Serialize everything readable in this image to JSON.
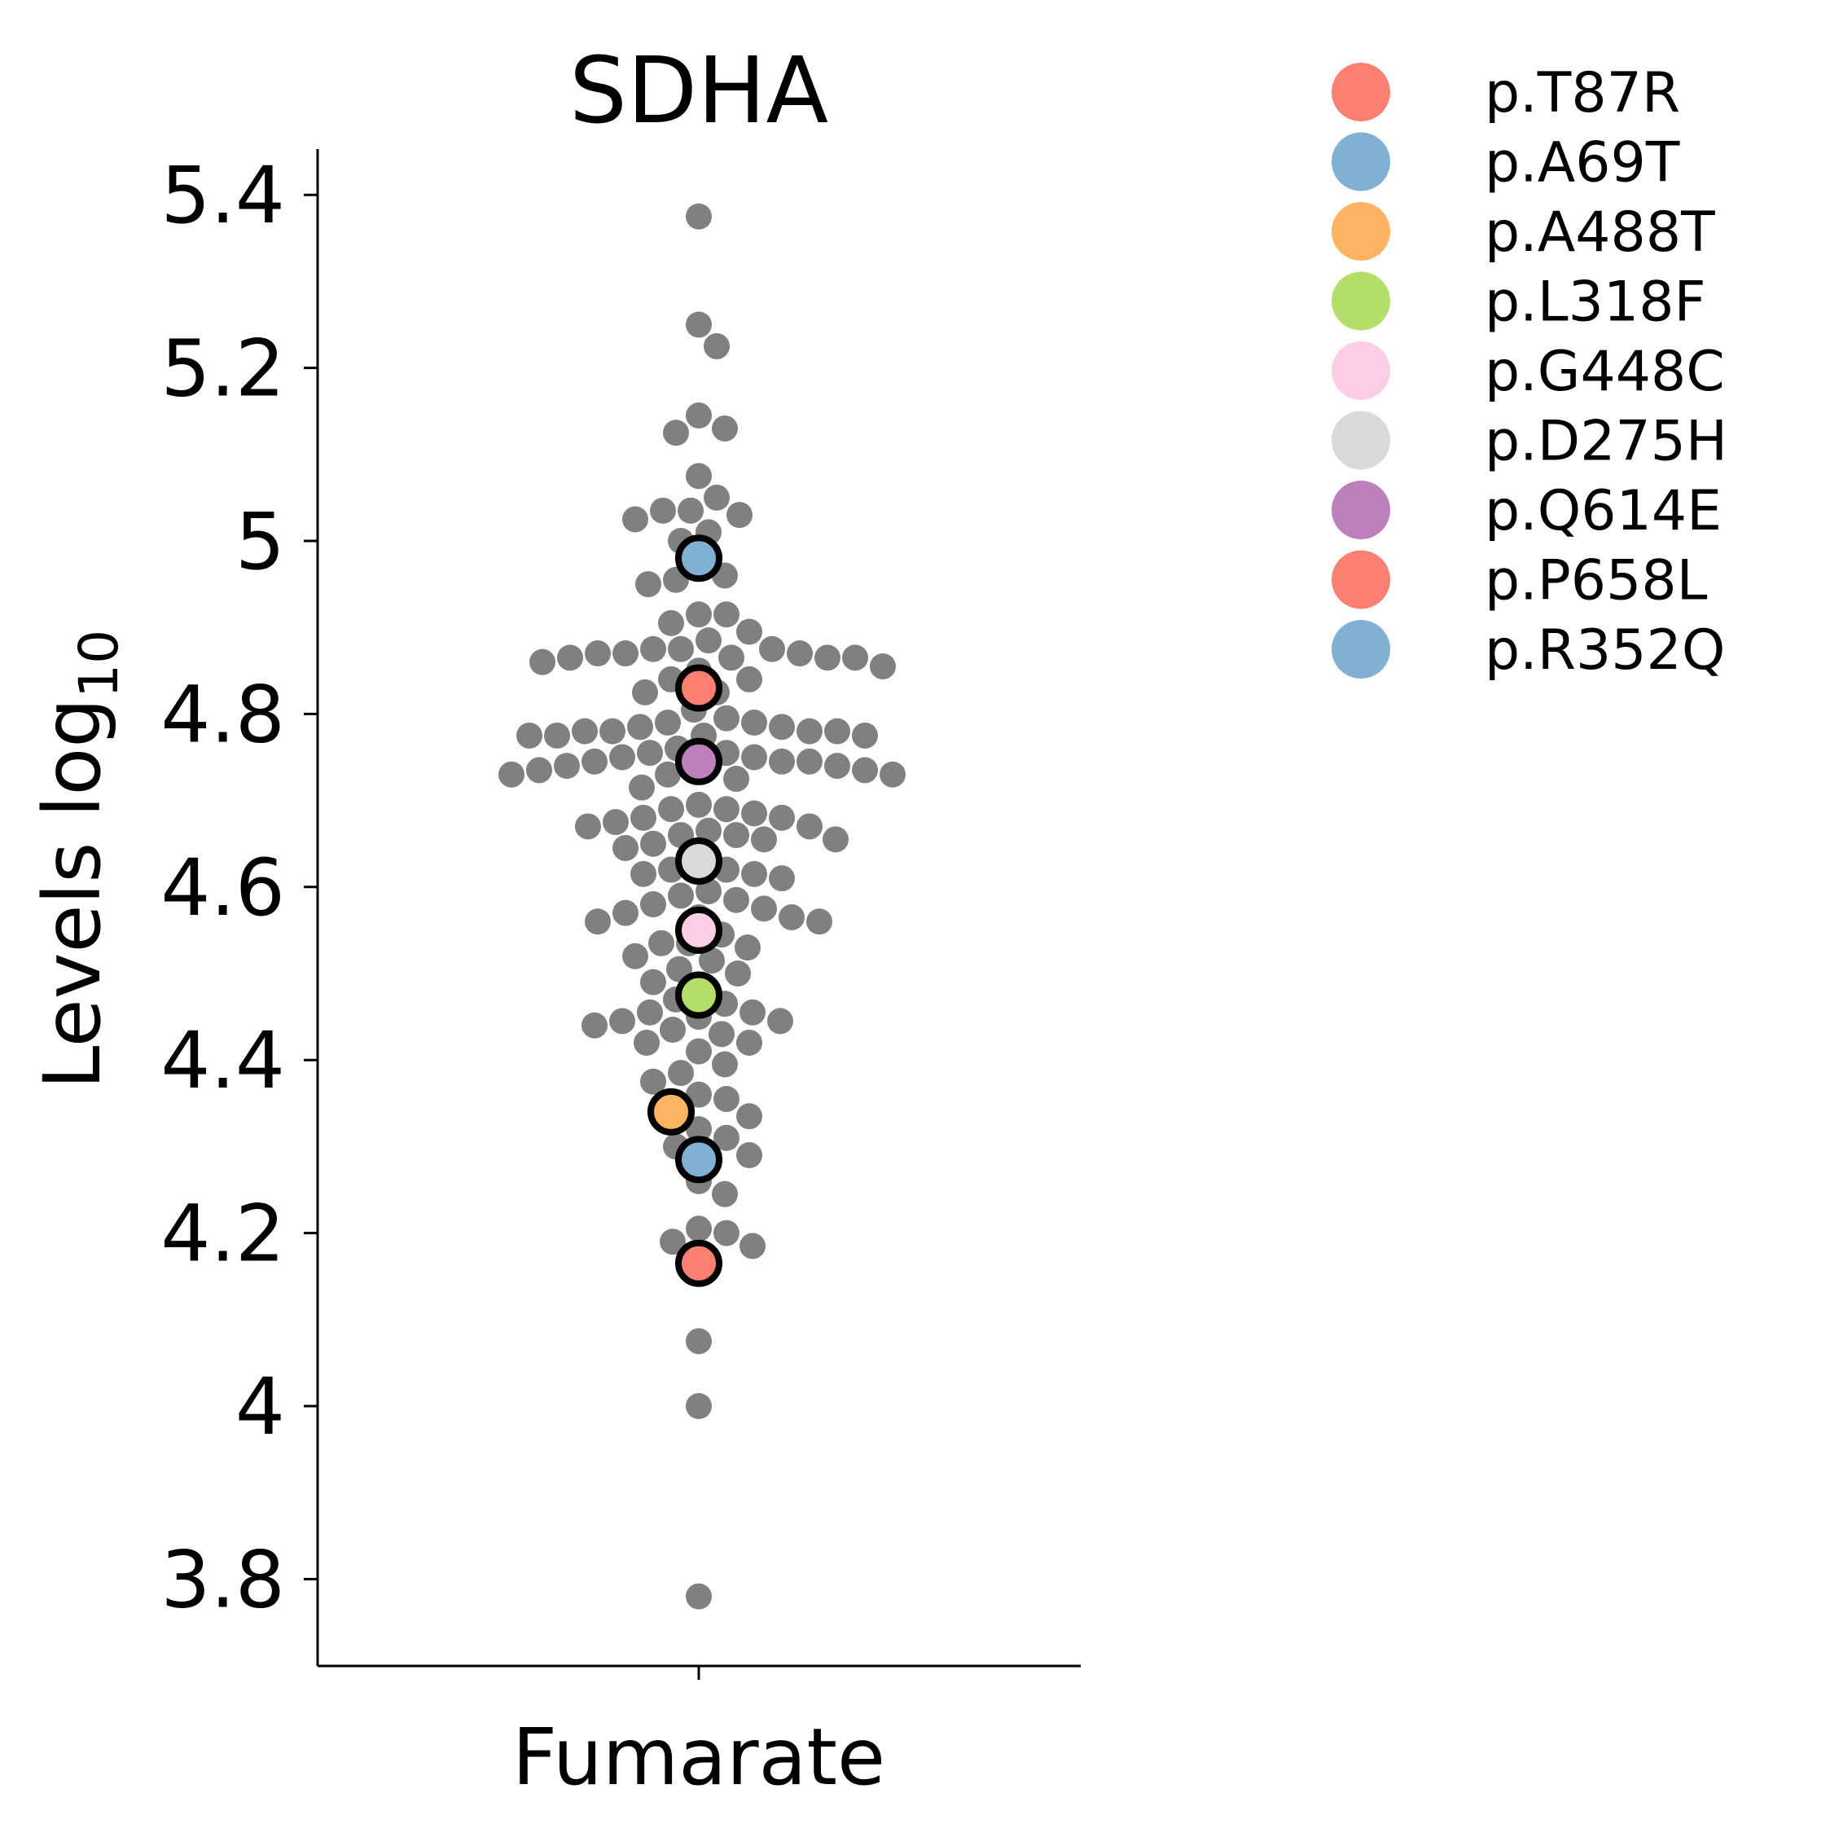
{
  "chart_data": {
    "type": "scatter",
    "title": "SDHA",
    "xlabel": "Fumarate",
    "ylabel": "Levels log",
    "ylabel_subscript": "10",
    "ylim": [
      3.7,
      5.45
    ],
    "yticks": [
      3.8,
      4,
      4.2,
      4.4,
      4.6,
      4.8,
      5,
      5.2,
      5.4
    ],
    "ytick_labels": [
      "3.8",
      "4",
      "4.2",
      "4.4",
      "4.6",
      "4.8",
      "5",
      "5.2",
      "5.4"
    ],
    "categories": [
      "Fumarate"
    ],
    "background_color": "#808080",
    "background_values": [
      5.375,
      5.25,
      5.225,
      5.145,
      5.13,
      5.125,
      5.075,
      5.05,
      5.035,
      5.035,
      5.03,
      5.025,
      5.01,
      5.0,
      4.975,
      4.96,
      4.955,
      4.95,
      4.915,
      4.915,
      4.905,
      4.895,
      4.885,
      4.875,
      4.875,
      4.875,
      4.87,
      4.87,
      4.87,
      4.865,
      4.865,
      4.865,
      4.865,
      4.86,
      4.855,
      4.85,
      4.84,
      4.84,
      4.825,
      4.825,
      4.805,
      4.795,
      4.79,
      4.79,
      4.785,
      4.785,
      4.78,
      4.78,
      4.78,
      4.78,
      4.775,
      4.775,
      4.775,
      4.775,
      4.76,
      4.755,
      4.755,
      4.75,
      4.75,
      4.745,
      4.745,
      4.745,
      4.74,
      4.74,
      4.74,
      4.735,
      4.735,
      4.73,
      4.73,
      4.73,
      4.725,
      4.715,
      4.695,
      4.69,
      4.69,
      4.685,
      4.68,
      4.68,
      4.675,
      4.67,
      4.67,
      4.665,
      4.66,
      4.66,
      4.655,
      4.655,
      4.65,
      4.645,
      4.625,
      4.62,
      4.62,
      4.615,
      4.615,
      4.61,
      4.595,
      4.59,
      4.585,
      4.58,
      4.575,
      4.57,
      4.565,
      4.565,
      4.56,
      4.56,
      4.545,
      4.535,
      4.535,
      4.53,
      4.52,
      4.515,
      4.505,
      4.5,
      4.49,
      4.485,
      4.47,
      4.465,
      4.455,
      4.455,
      4.45,
      4.445,
      4.445,
      4.44,
      4.435,
      4.43,
      4.42,
      4.42,
      4.41,
      4.395,
      4.385,
      4.375,
      4.36,
      4.355,
      4.345,
      4.335,
      4.32,
      4.31,
      4.3,
      4.29,
      4.26,
      4.245,
      4.205,
      4.2,
      4.19,
      4.185,
      4.075,
      4.0,
      3.78
    ],
    "highlighted": [
      {
        "name": "p.A69T",
        "value": 4.98,
        "color": "#80b1d3"
      },
      {
        "name": "p.T87R",
        "value": 4.83,
        "color": "#fb8072"
      },
      {
        "name": "p.Q614E",
        "value": 4.745,
        "color": "#bc80bd"
      },
      {
        "name": "p.D275H",
        "value": 4.63,
        "color": "#d9d9d9"
      },
      {
        "name": "p.G448C",
        "value": 4.55,
        "color": "#fccde5"
      },
      {
        "name": "p.L318F",
        "value": 4.475,
        "color": "#b3de69"
      },
      {
        "name": "p.A488T",
        "value": 4.34,
        "color": "#fdb462"
      },
      {
        "name": "p.R352Q",
        "value": 4.285,
        "color": "#80b1d3"
      },
      {
        "name": "p.P658L",
        "value": 4.165,
        "color": "#fb8072"
      }
    ],
    "legend": {
      "placement": "top-right-outside",
      "entries": [
        {
          "label": "p.T87R",
          "color": "#fb8072"
        },
        {
          "label": "p.A69T",
          "color": "#80b1d3"
        },
        {
          "label": "p.A488T",
          "color": "#fdb462"
        },
        {
          "label": "p.L318F",
          "color": "#b3de69"
        },
        {
          "label": "p.G448C",
          "color": "#fccde5"
        },
        {
          "label": "p.D275H",
          "color": "#d9d9d9"
        },
        {
          "label": "p.Q614E",
          "color": "#bc80bd"
        },
        {
          "label": "p.P658L",
          "color": "#fb8072"
        },
        {
          "label": "p.R352Q",
          "color": "#80b1d3"
        }
      ]
    },
    "grid": false
  }
}
